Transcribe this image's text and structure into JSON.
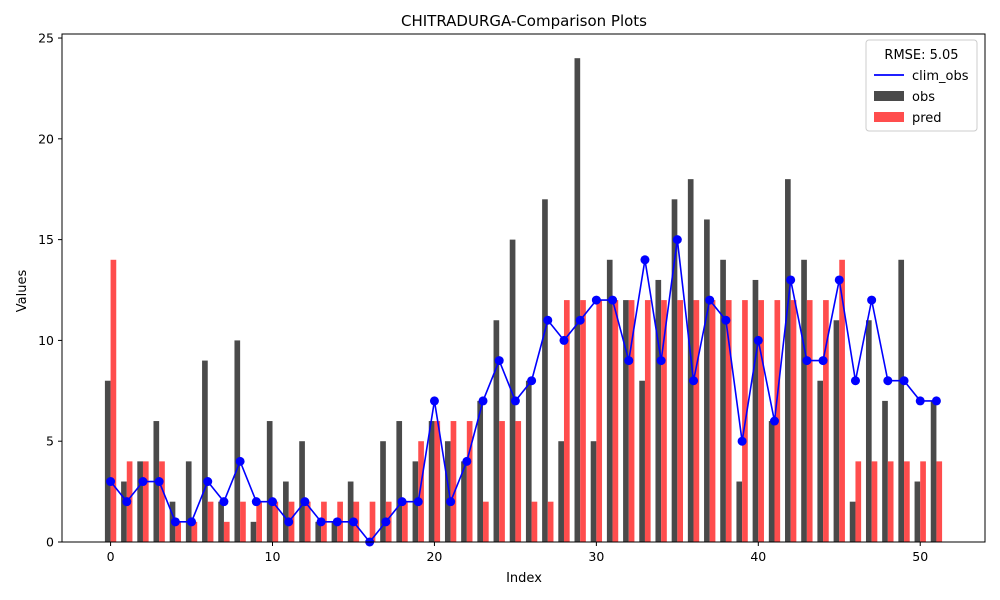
{
  "chart_data": {
    "type": "bar",
    "title": "CHITRADURGA-Comparison Plots",
    "xlabel": "Index",
    "ylabel": "Values",
    "xlim": [
      -3,
      54
    ],
    "ylim": [
      0,
      25.2
    ],
    "xticks": [
      0,
      10,
      20,
      30,
      40,
      50
    ],
    "yticks": [
      0,
      5,
      10,
      15,
      20,
      25
    ],
    "legend": {
      "title": "RMSE: 5.05",
      "position": "top-right",
      "entries": [
        "clim_obs",
        "obs",
        "pred"
      ]
    },
    "x": [
      0,
      1,
      2,
      3,
      4,
      5,
      6,
      7,
      8,
      9,
      10,
      11,
      12,
      13,
      14,
      15,
      16,
      17,
      18,
      19,
      20,
      21,
      22,
      23,
      24,
      25,
      26,
      27,
      28,
      29,
      30,
      31,
      32,
      33,
      34,
      35,
      36,
      37,
      38,
      39,
      40,
      41,
      42,
      43,
      44,
      45,
      46,
      47,
      48,
      49,
      50,
      51
    ],
    "series": [
      {
        "name": "clim_obs",
        "kind": "line",
        "color": "#0000ff",
        "values": [
          3,
          2,
          3,
          3,
          1,
          1,
          3,
          2,
          4,
          2,
          2,
          1,
          2,
          1,
          1,
          1,
          0,
          1,
          2,
          2,
          7,
          2,
          4,
          7,
          9,
          7,
          8,
          11,
          10,
          11,
          12,
          12,
          9,
          14,
          9,
          15,
          8,
          12,
          11,
          5,
          10,
          6,
          13,
          9,
          9,
          13,
          8,
          12,
          8,
          8,
          7,
          7
        ]
      },
      {
        "name": "obs",
        "kind": "bar",
        "color": "#404040",
        "values": [
          8,
          3,
          4,
          6,
          2,
          4,
          9,
          2,
          10,
          1,
          6,
          3,
          5,
          1,
          1,
          3,
          0,
          5,
          6,
          4,
          6,
          5,
          4,
          7,
          11,
          15,
          8,
          17,
          5,
          24,
          5,
          14,
          12,
          8,
          13,
          17,
          18,
          16,
          14,
          3,
          13,
          6,
          18,
          14,
          8,
          11,
          2,
          11,
          7,
          14,
          3,
          7
        ]
      },
      {
        "name": "pred",
        "kind": "bar",
        "color": "#ff4d4d",
        "values": [
          14,
          4,
          4,
          4,
          1,
          1,
          2,
          1,
          2,
          2,
          2,
          2,
          2,
          2,
          2,
          2,
          2,
          2,
          2,
          5,
          6,
          6,
          6,
          2,
          6,
          6,
          2,
          2,
          12,
          12,
          12,
          12,
          12,
          12,
          12,
          12,
          12,
          12,
          12,
          12,
          12,
          12,
          12,
          12,
          12,
          14,
          4,
          4,
          4,
          4,
          4,
          4
        ]
      }
    ]
  }
}
